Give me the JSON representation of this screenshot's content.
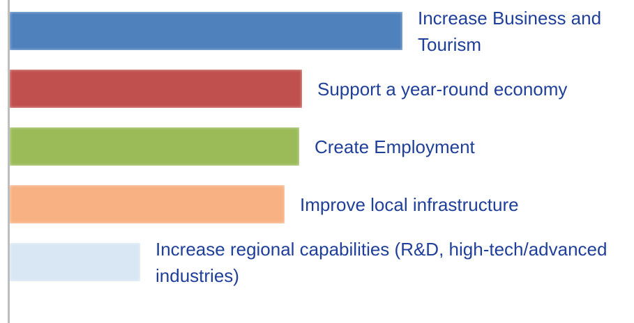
{
  "chart_data": {
    "type": "bar",
    "orientation": "horizontal",
    "categories": [
      "Increase Business and Tourism",
      "Support a year-round economy",
      "Create Employment",
      "Improve local infrastructure",
      "Increase regional capabilities (R&D, high-tech/advanced industries)"
    ],
    "values": [
      563,
      419,
      415,
      394,
      187
    ],
    "colors": [
      "#4f81bd",
      "#c0504d",
      "#9bbb59",
      "#f7b183",
      "#d9e7f5"
    ]
  }
}
